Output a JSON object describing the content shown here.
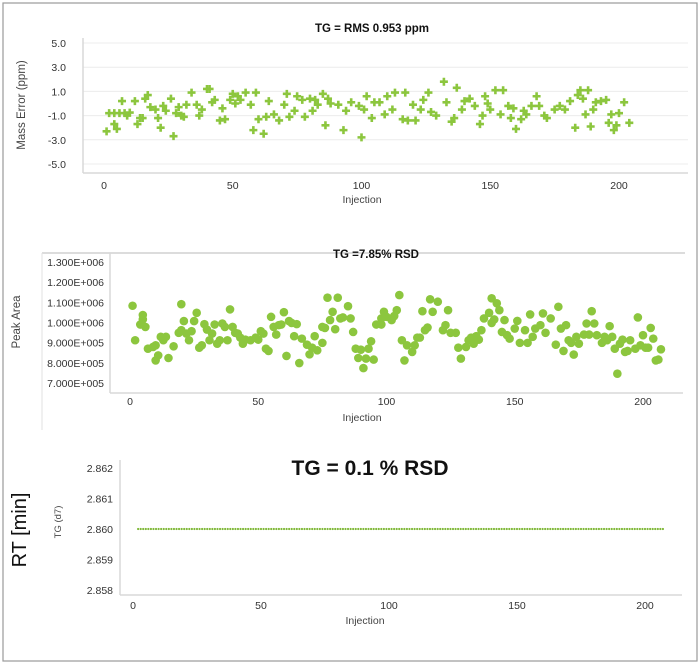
{
  "colors": {
    "marker": "#8cc63e",
    "grid": "#ececec",
    "axis": "#d8d8d8",
    "frame": "#9a9a9a"
  },
  "chart_data": [
    {
      "type": "scatter",
      "marker": "plus",
      "title": "TG = RMS 0.953 ppm",
      "xlabel": "Injection",
      "ylabel": "Mass Error (ppm)",
      "xlim": [
        0,
        210
      ],
      "ylim": [
        -5.0,
        5.0
      ],
      "xticks": [
        "0",
        "50",
        "100",
        "150",
        "200"
      ],
      "yticks": [
        "5.0",
        "3.0",
        "1.0",
        "-1.0",
        "-3.0",
        "-5.0"
      ],
      "grid": true,
      "x": [
        1,
        2,
        4,
        4,
        5,
        6,
        7,
        8,
        9,
        10,
        12,
        13,
        14,
        15,
        16,
        17,
        18,
        20,
        21,
        22,
        23,
        24,
        26,
        27,
        28,
        29,
        30,
        31,
        32,
        34,
        36,
        37,
        38,
        40,
        41,
        42,
        43,
        45,
        46,
        47,
        49,
        50,
        51,
        52,
        53,
        55,
        57,
        58,
        59,
        60,
        62,
        63,
        64,
        66,
        68,
        70,
        71,
        72,
        74,
        75,
        77,
        78,
        80,
        81,
        82,
        83,
        85,
        86,
        87,
        88,
        91,
        93,
        94,
        96,
        99,
        100,
        101,
        102,
        104,
        105,
        107,
        109,
        110,
        112,
        113,
        116,
        117,
        118,
        120,
        121,
        123,
        124,
        126,
        127,
        129,
        132,
        133,
        135,
        136,
        137,
        139,
        140,
        142,
        144,
        146,
        147,
        148,
        149,
        150,
        152,
        154,
        155,
        157,
        158,
        159,
        160,
        162,
        163,
        164,
        166,
        168,
        169,
        171,
        172,
        175,
        177,
        179,
        181,
        183,
        184,
        185,
        186,
        187,
        188,
        189,
        190,
        191,
        193,
        195,
        196,
        197,
        198,
        199,
        200,
        202,
        204
      ],
      "y": [
        -2.3,
        -0.8,
        -0.8,
        -1.7,
        -2.1,
        -0.8,
        0.2,
        -0.8,
        -1.0,
        -0.75,
        0.2,
        -1.7,
        -1.2,
        -1.2,
        0.4,
        0.7,
        -0.3,
        -0.5,
        -1.2,
        -2.0,
        -0.2,
        -0.6,
        0.4,
        -2.7,
        -0.8,
        -0.3,
        -1.0,
        -1.1,
        -0.1,
        0.9,
        -0.1,
        -1.0,
        -0.5,
        1.2,
        1.2,
        0.1,
        0.3,
        -1.4,
        -0.4,
        -1.3,
        0.3,
        0.8,
        0.0,
        0.6,
        0.3,
        0.9,
        -0.1,
        -2.2,
        0.9,
        -1.3,
        -2.5,
        -1.1,
        0.2,
        -0.9,
        -1.4,
        -0.1,
        0.8,
        -1.1,
        -0.6,
        0.6,
        0.3,
        -1.1,
        0.4,
        -0.6,
        0.3,
        -0.1,
        0.8,
        -1.8,
        0.4,
        0.0,
        -0.1,
        -2.2,
        -0.6,
        0.1,
        -0.2,
        -2.8,
        -0.5,
        0.6,
        -1.2,
        0.1,
        0.1,
        -0.9,
        0.6,
        -0.5,
        0.9,
        -1.3,
        0.9,
        -1.4,
        -0.1,
        -1.4,
        -0.5,
        0.3,
        0.9,
        -0.7,
        -1.0,
        1.8,
        0.1,
        -1.5,
        -1.2,
        1.3,
        -0.5,
        0.2,
        0.4,
        -0.2,
        -1.7,
        -1.0,
        0.6,
        0.0,
        -0.5,
        1.1,
        -0.9,
        1.1,
        -0.2,
        -1.2,
        -0.4,
        -2.1,
        -1.3,
        -0.6,
        -0.9,
        -0.2,
        0.6,
        -0.2,
        -1.0,
        -1.2,
        -0.5,
        -0.2,
        -0.5,
        0.2,
        -2.0,
        0.7,
        1.1,
        0.4,
        -0.9,
        1.1,
        -1.9,
        -0.5,
        0.1,
        0.2,
        0.3,
        -1.6,
        -0.9,
        -2.2,
        -1.8,
        -0.8,
        0.1,
        -1.6
      ]
    },
    {
      "type": "scatter",
      "marker": "circle",
      "title": "TG =7.85% RSD",
      "xlabel": "Injection",
      "ylabel": "Peak Area",
      "xlim": [
        0,
        210
      ],
      "ylim": [
        700000,
        1300000
      ],
      "xticks": [
        "0",
        "50",
        "100",
        "150",
        "200"
      ],
      "yticks": [
        "1.300E+006",
        "1.200E+006",
        "1.100E+006",
        "1.000E+006",
        "9.000E+005",
        "8.000E+005",
        "7.000E+005"
      ],
      "grid": false,
      "x": [
        1,
        2,
        4,
        5,
        5,
        6,
        7,
        9,
        10,
        10,
        11,
        12,
        13,
        14,
        15,
        17,
        19,
        20,
        20,
        21,
        22,
        23,
        24,
        25,
        26,
        27,
        28,
        29,
        30,
        31,
        32,
        33,
        34,
        35,
        36,
        37,
        38,
        39,
        40,
        41,
        42,
        43,
        44,
        45,
        47,
        49,
        50,
        51,
        52,
        53,
        54,
        55,
        56,
        57,
        58,
        59,
        60,
        61,
        62,
        63,
        64,
        65,
        66,
        67,
        69,
        70,
        71,
        72,
        73,
        75,
        75,
        76,
        77,
        78,
        79,
        80,
        81,
        82,
        83,
        85,
        86,
        87,
        88,
        89,
        90,
        91,
        92,
        93,
        94,
        95,
        96,
        98,
        98,
        99,
        100,
        102,
        103,
        104,
        105,
        106,
        107,
        108,
        110,
        111,
        112,
        113,
        114,
        115,
        116,
        117,
        118,
        120,
        122,
        123,
        124,
        125,
        127,
        128,
        129,
        131,
        132,
        133,
        134,
        135,
        136,
        137,
        138,
        140,
        141,
        141,
        142,
        143,
        144,
        145,
        146,
        147,
        148,
        150,
        151,
        152,
        154,
        155,
        156,
        157,
        158,
        160,
        161,
        162,
        164,
        166,
        167,
        168,
        169,
        170,
        171,
        172,
        173,
        174,
        175,
        177,
        178,
        179,
        180,
        181,
        182,
        184,
        185,
        186,
        187,
        188,
        189,
        190,
        191,
        192,
        193,
        194,
        195,
        197,
        198,
        199,
        200,
        201,
        202,
        203,
        204,
        205,
        206,
        207
      ],
      "y": [
        1083000,
        912000,
        990000,
        1015000,
        1037000,
        978000,
        870000,
        879000,
        887000,
        812000,
        837000,
        929000,
        912000,
        929000,
        824000,
        882000,
        949000,
        962000,
        1091000,
        1007000,
        945000,
        912000,
        957000,
        1007000,
        1048000,
        875000,
        887000,
        992000,
        965000,
        912000,
        945000,
        990000,
        895000,
        912000,
        995000,
        978000,
        912000,
        1065000,
        978000,
        949000,
        945000,
        925000,
        895000,
        915000,
        912000,
        925000,
        915000,
        957000,
        945000,
        870000,
        859000,
        1028000,
        978000,
        940000,
        987000,
        990000,
        1051000,
        834000,
        1007000,
        998000,
        932000,
        992000,
        799000,
        920000,
        890000,
        842000,
        875000,
        932000,
        862000,
        899000,
        978000,
        973000,
        1123000,
        1012000,
        1053000,
        967000,
        1123000,
        1020000,
        1025000,
        1081000,
        1020000,
        953000,
        870000,
        824000,
        865000,
        774000,
        821000,
        870000,
        907000,
        816000,
        990000,
        1020000,
        990000,
        1053000,
        1028000,
        1012000,
        1032000,
        1061000,
        1136000,
        912000,
        812000,
        887000,
        854000,
        887000,
        925000,
        925000,
        1056000,
        962000,
        975000,
        1115000,
        1053000,
        1103000,
        962000,
        987000,
        1061000,
        949000,
        949000,
        875000,
        821000,
        879000,
        912000,
        925000,
        895000,
        932000,
        915000,
        962000,
        1020000,
        1048000,
        998000,
        1120000,
        1015000,
        1095000,
        1061000,
        953000,
        1012000,
        937000,
        920000,
        970000,
        1008000,
        899000,
        962000,
        899000,
        1040000,
        929000,
        970000,
        987000,
        1045000,
        949000,
        1020000,
        890000,
        1078000,
        970000,
        859000,
        987000,
        912000,
        899000,
        841000,
        929000,
        895000,
        940000,
        995000,
        940000,
        1056000,
        995000,
        937000,
        899000,
        929000,
        912000,
        982000,
        929000,
        870000,
        746000,
        895000,
        915000,
        854000,
        859000,
        912000,
        870000,
        1025000,
        887000,
        937000,
        875000,
        875000,
        973000,
        920000,
        812000,
        816000,
        867000
      ]
    },
    {
      "type": "scatter",
      "marker": "dot",
      "title": "TG  = 0.1 % RSD",
      "xlabel": "Injection",
      "ylabel": "RT [min]",
      "series_label": "TG (d7)",
      "xlim": [
        0,
        210
      ],
      "ylim": [
        2.858,
        2.862
      ],
      "xticks": [
        "0",
        "50",
        "100",
        "150",
        "200"
      ],
      "yticks": [
        "2.862",
        "2.861",
        "2.860",
        "2.859",
        "2.858"
      ],
      "grid": false,
      "x_first": 2,
      "x_last": 207,
      "y_constant": 2.86
    }
  ]
}
